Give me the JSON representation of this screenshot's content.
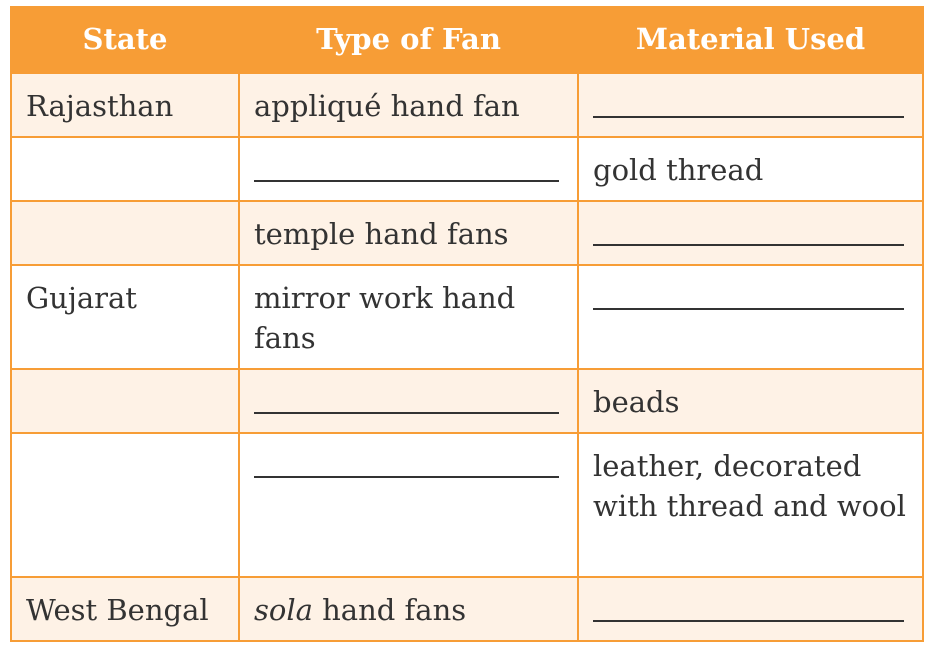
{
  "columns": [
    "State",
    "Type of Fan",
    "Material Used"
  ],
  "rows": [
    {
      "state": "Rajasthan",
      "fan": "appliqué hand fan",
      "material": ""
    },
    {
      "state": "",
      "fan": "",
      "material": "gold thread"
    },
    {
      "state": "",
      "fan": "temple hand fans",
      "material": ""
    },
    {
      "state": "Gujarat",
      "fan": "mirror work hand fans",
      "material": ""
    },
    {
      "state": "",
      "fan": "",
      "material": "beads"
    },
    {
      "state": "",
      "fan": "",
      "material": "leather, decorated with thread and wool"
    },
    {
      "state": "West Bengal",
      "fan_italic": "sola",
      "fan_rest": " hand fans",
      "material": ""
    }
  ],
  "colors": {
    "header": "#F79D36",
    "alt_row": "#FEF2E6",
    "border": "#F79D36"
  }
}
